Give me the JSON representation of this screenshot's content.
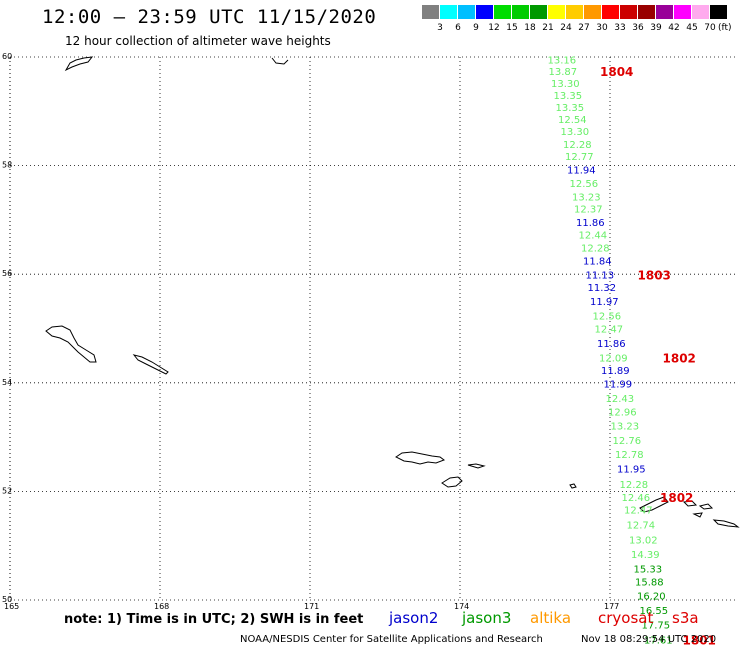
{
  "header": {
    "title": "12:00 – 23:59 UTC 11/15/2020",
    "subtitle": "12 hour collection of altimeter wave heights"
  },
  "color_scale": {
    "colors": [
      "#808080",
      "#00ffff",
      "#00bfff",
      "#0000ff",
      "#00dd00",
      "#00cc00",
      "#009900",
      "#ffff00",
      "#ffcc00",
      "#ff9900",
      "#ff0000",
      "#cc0000",
      "#990000",
      "#990099",
      "#ff00ff",
      "#ffaaee",
      "#000000"
    ],
    "labels": [
      "3",
      "6",
      "9",
      "12",
      "15",
      "18",
      "21",
      "24",
      "27",
      "30",
      "33",
      "36",
      "39",
      "42",
      "45",
      "70"
    ],
    "unit": "(ft)"
  },
  "axes": {
    "lat_ticks": [
      "60",
      "58",
      "56",
      "54",
      "52",
      "50"
    ],
    "lon_ticks": [
      "165",
      "168",
      "171",
      "174",
      "177"
    ]
  },
  "satellite_colors": {
    "jason2": "#0000cc",
    "jason3": "#009900",
    "altika": "#ff9900",
    "cryosat": "#dd0000",
    "s3a": "#66ee66"
  },
  "observations": [
    {
      "v": "13.16",
      "lat": 59.95,
      "lon": 175.75,
      "sat": "s3a"
    },
    {
      "v": "13.87",
      "lat": 59.74,
      "lon": 175.77,
      "sat": "s3a"
    },
    {
      "v": "13.30",
      "lat": 59.52,
      "lon": 175.82,
      "sat": "s3a"
    },
    {
      "v": "13.35",
      "lat": 59.3,
      "lon": 175.87,
      "sat": "s3a"
    },
    {
      "v": "13.35",
      "lat": 59.08,
      "lon": 175.91,
      "sat": "s3a"
    },
    {
      "v": "12.54",
      "lat": 58.86,
      "lon": 175.96,
      "sat": "s3a"
    },
    {
      "v": "13.30",
      "lat": 58.64,
      "lon": 176.01,
      "sat": "s3a"
    },
    {
      "v": "12.28",
      "lat": 58.4,
      "lon": 176.06,
      "sat": "s3a"
    },
    {
      "v": "12.77",
      "lat": 58.18,
      "lon": 176.1,
      "sat": "s3a"
    },
    {
      "v": "11.94",
      "lat": 57.93,
      "lon": 176.14,
      "sat": "jason2"
    },
    {
      "v": "12.56",
      "lat": 57.68,
      "lon": 176.19,
      "sat": "s3a"
    },
    {
      "v": "13.23",
      "lat": 57.43,
      "lon": 176.24,
      "sat": "s3a"
    },
    {
      "v": "12.37",
      "lat": 57.21,
      "lon": 176.28,
      "sat": "s3a"
    },
    {
      "v": "11.86",
      "lat": 56.96,
      "lon": 176.32,
      "sat": "jason2"
    },
    {
      "v": "12.44",
      "lat": 56.73,
      "lon": 176.37,
      "sat": "s3a"
    },
    {
      "v": "12.28",
      "lat": 56.49,
      "lon": 176.42,
      "sat": "s3a"
    },
    {
      "v": "11.84",
      "lat": 56.25,
      "lon": 176.46,
      "sat": "jason2"
    },
    {
      "v": "11.13",
      "lat": 55.99,
      "lon": 176.51,
      "sat": "jason2"
    },
    {
      "v": "11.32",
      "lat": 55.76,
      "lon": 176.55,
      "sat": "jason2"
    },
    {
      "v": "11.97",
      "lat": 55.51,
      "lon": 176.6,
      "sat": "jason2"
    },
    {
      "v": "12.56",
      "lat": 55.24,
      "lon": 176.65,
      "sat": "s3a"
    },
    {
      "v": "12.47",
      "lat": 55.0,
      "lon": 176.69,
      "sat": "s3a"
    },
    {
      "v": "11.86",
      "lat": 54.73,
      "lon": 176.74,
      "sat": "jason2"
    },
    {
      "v": "12.09",
      "lat": 54.47,
      "lon": 176.78,
      "sat": "s3a"
    },
    {
      "v": "11.89",
      "lat": 54.24,
      "lon": 176.82,
      "sat": "jason2"
    },
    {
      "v": "11.99",
      "lat": 53.99,
      "lon": 176.87,
      "sat": "jason2"
    },
    {
      "v": "12.43",
      "lat": 53.72,
      "lon": 176.91,
      "sat": "s3a"
    },
    {
      "v": "12.96",
      "lat": 53.47,
      "lon": 176.96,
      "sat": "s3a"
    },
    {
      "v": "13.23",
      "lat": 53.21,
      "lon": 177.01,
      "sat": "s3a"
    },
    {
      "v": "12.76",
      "lat": 52.95,
      "lon": 177.05,
      "sat": "s3a"
    },
    {
      "v": "12.78",
      "lat": 52.69,
      "lon": 177.1,
      "sat": "s3a"
    },
    {
      "v": "11.95",
      "lat": 52.42,
      "lon": 177.14,
      "sat": "jason2"
    },
    {
      "v": "12.28",
      "lat": 52.14,
      "lon": 177.19,
      "sat": "s3a"
    },
    {
      "v": "12.46",
      "lat": 51.9,
      "lon": 177.23,
      "sat": "s3a"
    },
    {
      "v": "12.47",
      "lat": 51.67,
      "lon": 177.28,
      "sat": "s3a"
    },
    {
      "v": "12.74",
      "lat": 51.39,
      "lon": 177.33,
      "sat": "s3a"
    },
    {
      "v": "13.02",
      "lat": 51.11,
      "lon": 177.38,
      "sat": "s3a"
    },
    {
      "v": "14.39",
      "lat": 50.85,
      "lon": 177.42,
      "sat": "s3a"
    },
    {
      "v": "15.33",
      "lat": 50.58,
      "lon": 177.47,
      "sat": "jason3"
    },
    {
      "v": "15.88",
      "lat": 50.34,
      "lon": 177.5,
      "sat": "jason3"
    },
    {
      "v": "16.20",
      "lat": 50.08,
      "lon": 177.54,
      "sat": "jason3"
    },
    {
      "v": "16.55",
      "lat": 49.82,
      "lon": 177.59,
      "sat": "jason3"
    },
    {
      "v": "17.75",
      "lat": 49.55,
      "lon": 177.63,
      "sat": "jason3"
    },
    {
      "v": "17.61",
      "lat": 49.27,
      "lon": 177.68,
      "sat": "jason3"
    }
  ],
  "track_ids": [
    {
      "id": "1804",
      "lat": 59.74,
      "lon": 176.8
    },
    {
      "id": "1803",
      "lat": 55.99,
      "lon": 177.55
    },
    {
      "id": "1802",
      "lat": 54.47,
      "lon": 178.05
    },
    {
      "id": "1802",
      "lat": 51.9,
      "lon": 178.0
    },
    {
      "id": "1801",
      "lat": 49.27,
      "lon": 178.45
    }
  ],
  "footer": {
    "note": "note: 1) Time is in UTC; 2) SWH is in feet",
    "legend": {
      "jason2": "jason2",
      "jason3": "jason3",
      "altika": "altika",
      "cryosat": "cryosat",
      "s3a": "s3a"
    },
    "credit": "NOAA/NESDIS Center for Satellite Applications and Research",
    "timestamp": "Nov 18 08:29:54 UTC 2020"
  }
}
